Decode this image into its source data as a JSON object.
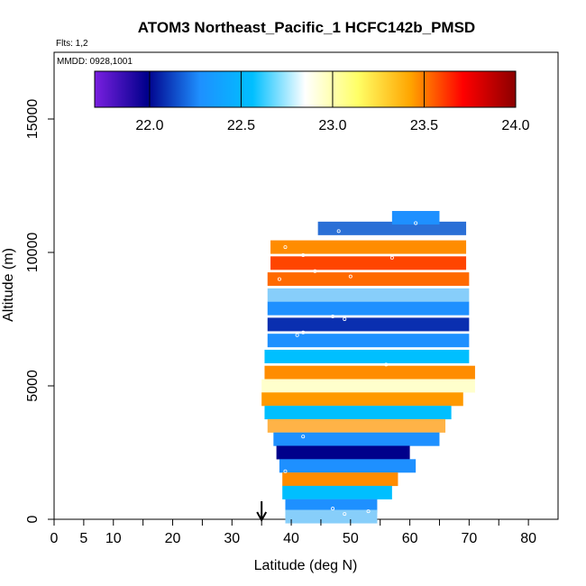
{
  "chart_data": {
    "type": "heatmap",
    "title": "ATOM3 Northeast_Pacific_1 HCFC142b_PMSD",
    "flights_label": "Flts: 1,2",
    "dates_label": "MMDD: 0928,1001",
    "xlabel": "Latitude (deg N)",
    "ylabel": "Altitude (m)",
    "xlim": [
      0,
      85
    ],
    "ylim": [
      0,
      17500
    ],
    "x_ticks": [
      0,
      5,
      10,
      20,
      30,
      40,
      50,
      60,
      70,
      80
    ],
    "x_minor_ticks": [
      15,
      25,
      35,
      45,
      55,
      65,
      75
    ],
    "y_ticks": [
      0,
      5000,
      10000,
      15000
    ],
    "colorbar": {
      "min": 21.7,
      "max": 24.0,
      "ticks": [
        22.0,
        22.5,
        23.0,
        23.5,
        24.0
      ],
      "tick_labels": [
        "22.0",
        "22.5",
        "23.0",
        "23.5",
        "24.0"
      ],
      "colors": [
        "#7a1fe0",
        "#00008b",
        "#1e90ff",
        "#00bfff",
        "#ffffff",
        "#ffff66",
        "#ffa500",
        "#ff0000",
        "#8b0000"
      ]
    },
    "marker_latitude": 35,
    "rows": [
      {
        "alt": 10900,
        "lat_min": 44.5,
        "lat_max": 69.5,
        "color": "#2a6fd6"
      },
      {
        "alt": 11300,
        "lat_min": 57.0,
        "lat_max": 65.0,
        "color": "#1e90ff"
      },
      {
        "alt": 10200,
        "lat_min": 36.5,
        "lat_max": 69.5,
        "color": "#ff8c00"
      },
      {
        "alt": 9600,
        "lat_min": 36.5,
        "lat_max": 69.5,
        "color": "#ff4500"
      },
      {
        "alt": 9000,
        "lat_min": 36.0,
        "lat_max": 70.0,
        "color": "#ff6a00"
      },
      {
        "alt": 8400,
        "lat_min": 36.0,
        "lat_max": 70.0,
        "color": "#87cefa"
      },
      {
        "alt": 7900,
        "lat_min": 36.0,
        "lat_max": 70.0,
        "color": "#1e90ff"
      },
      {
        "alt": 7300,
        "lat_min": 36.0,
        "lat_max": 70.0,
        "color": "#0a2fb0"
      },
      {
        "alt": 6700,
        "lat_min": 36.0,
        "lat_max": 70.0,
        "color": "#1e90ff"
      },
      {
        "alt": 6100,
        "lat_min": 35.5,
        "lat_max": 70.0,
        "color": "#00bfff"
      },
      {
        "alt": 5500,
        "lat_min": 35.5,
        "lat_max": 71.0,
        "color": "#ff8c00"
      },
      {
        "alt": 5000,
        "lat_min": 35.0,
        "lat_max": 71.0,
        "color": "#ffffcc"
      },
      {
        "alt": 4500,
        "lat_min": 35.0,
        "lat_max": 69.0,
        "color": "#ff9900"
      },
      {
        "alt": 4000,
        "lat_min": 35.5,
        "lat_max": 67.0,
        "color": "#00bfff"
      },
      {
        "alt": 3500,
        "lat_min": 36.0,
        "lat_max": 66.0,
        "color": "#ffb347"
      },
      {
        "alt": 3000,
        "lat_min": 37.0,
        "lat_max": 65.0,
        "color": "#1e90ff"
      },
      {
        "alt": 2500,
        "lat_min": 37.5,
        "lat_max": 60.0,
        "color": "#00008b"
      },
      {
        "alt": 2000,
        "lat_min": 38.0,
        "lat_max": 61.0,
        "color": "#1e90ff"
      },
      {
        "alt": 1500,
        "lat_min": 38.5,
        "lat_max": 58.0,
        "color": "#ff8c00"
      },
      {
        "alt": 1000,
        "lat_min": 38.5,
        "lat_max": 57.0,
        "color": "#00bfff"
      },
      {
        "alt": 500,
        "lat_min": 39.0,
        "lat_max": 54.5,
        "color": "#1e90ff"
      },
      {
        "alt": 100,
        "lat_min": 39.0,
        "lat_max": 54.5,
        "color": "#87cefa"
      }
    ],
    "samples": [
      {
        "lat": 48,
        "alt": 10800
      },
      {
        "lat": 61,
        "alt": 11100
      },
      {
        "lat": 39,
        "alt": 10200
      },
      {
        "lat": 42,
        "alt": 9900
      },
      {
        "lat": 57,
        "alt": 9800
      },
      {
        "lat": 44,
        "alt": 9300
      },
      {
        "lat": 38,
        "alt": 9000
      },
      {
        "lat": 50,
        "alt": 9100
      },
      {
        "lat": 47,
        "alt": 7600
      },
      {
        "lat": 49,
        "alt": 7500
      },
      {
        "lat": 41,
        "alt": 6900
      },
      {
        "lat": 42,
        "alt": 7000
      },
      {
        "lat": 56,
        "alt": 5800
      },
      {
        "lat": 42,
        "alt": 3100
      },
      {
        "lat": 39,
        "alt": 1800
      },
      {
        "lat": 47,
        "alt": 400
      },
      {
        "lat": 49,
        "alt": 200
      },
      {
        "lat": 53,
        "alt": 300
      }
    ]
  }
}
